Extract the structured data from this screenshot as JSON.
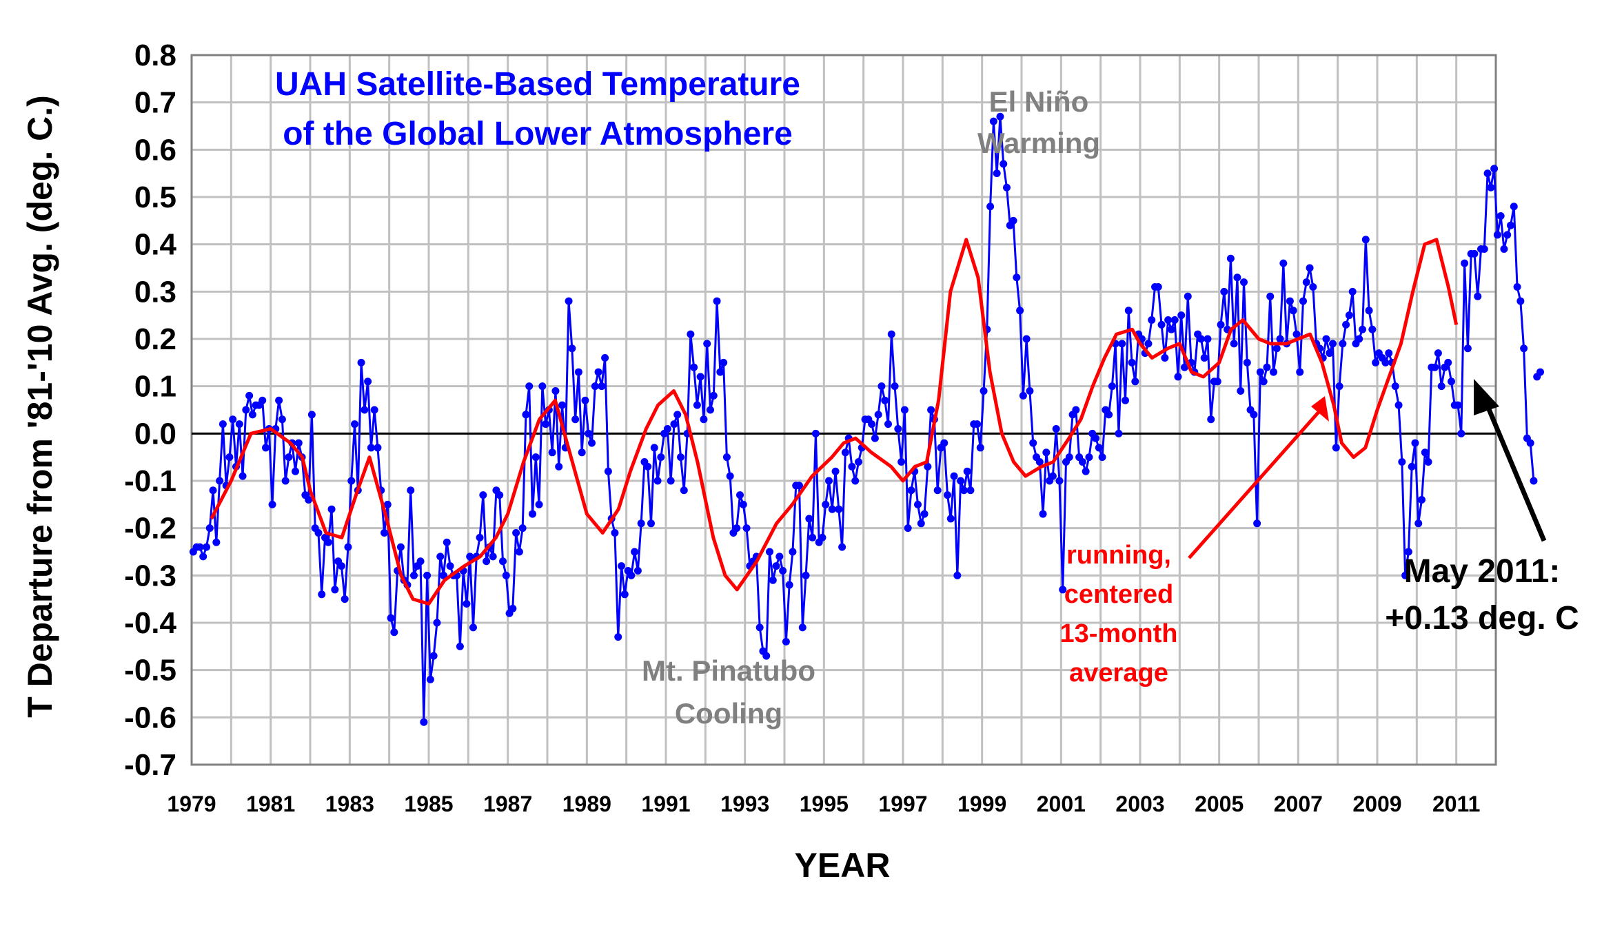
{
  "chart_data": {
    "type": "line",
    "title": "UAH Satellite-Based Temperature of the Global Lower Atmosphere",
    "title_lines": [
      "UAH Satellite-Based Temperature",
      "of the Global Lower Atmosphere"
    ],
    "xlabel": "YEAR",
    "ylabel": "T Departure from '81-'10 Avg. (deg. C.)",
    "xlim": [
      1979,
      2012
    ],
    "ylim": [
      -0.7,
      0.8
    ],
    "y_ticks": [
      "0.8",
      "0.7",
      "0.6",
      "0.5",
      "0.4",
      "0.3",
      "0.2",
      "0.1",
      "0.0",
      "-0.1",
      "-0.2",
      "-0.3",
      "-0.4",
      "-0.5",
      "-0.6",
      "-0.7"
    ],
    "x_ticks": [
      "1979",
      "1981",
      "1983",
      "1985",
      "1987",
      "1989",
      "1991",
      "1993",
      "1995",
      "1997",
      "1999",
      "2001",
      "2003",
      "2005",
      "2007",
      "2009",
      "2011"
    ],
    "grid": true,
    "colors": {
      "monthly": "#0000ff",
      "running": "#ff0000",
      "grid": "#c0c0c0",
      "zero": "#000000",
      "arrow": "#000000",
      "red_arrow": "#ff0000"
    },
    "annotations": {
      "el_nino": [
        "El Niño",
        "Warming"
      ],
      "pinatubo": [
        "Mt. Pinatubo",
        "Cooling"
      ],
      "running": [
        "running,",
        "centered",
        "13-month",
        "average"
      ],
      "latest": [
        "May 2011:",
        "+0.13 deg. C"
      ]
    },
    "series": [
      {
        "name": "monthly",
        "start": "1979-01",
        "values": [
          -0.25,
          -0.24,
          -0.24,
          -0.26,
          -0.24,
          -0.2,
          -0.12,
          -0.23,
          -0.1,
          0.02,
          -0.11,
          -0.05,
          0.03,
          -0.07,
          0.02,
          -0.09,
          0.05,
          0.08,
          0.04,
          0.06,
          0.06,
          0.07,
          -0.03,
          0.01,
          -0.15,
          0.01,
          0.07,
          0.03,
          -0.1,
          -0.05,
          -0.02,
          -0.08,
          -0.02,
          -0.05,
          -0.13,
          -0.14,
          0.04,
          -0.2,
          -0.21,
          -0.34,
          -0.22,
          -0.23,
          -0.16,
          -0.33,
          -0.27,
          -0.28,
          -0.35,
          -0.24,
          -0.1,
          0.02,
          -0.12,
          0.15,
          0.05,
          0.11,
          -0.03,
          0.05,
          -0.03,
          -0.12,
          -0.21,
          -0.15,
          -0.39,
          -0.42,
          -0.29,
          -0.24,
          -0.31,
          -0.32,
          -0.12,
          -0.3,
          -0.28,
          -0.27,
          -0.61,
          -0.3,
          -0.52,
          -0.47,
          -0.4,
          -0.26,
          -0.3,
          -0.23,
          -0.28,
          -0.3,
          -0.3,
          -0.45,
          -0.29,
          -0.36,
          -0.26,
          -0.41,
          -0.26,
          -0.22,
          -0.13,
          -0.27,
          -0.24,
          -0.26,
          -0.12,
          -0.13,
          -0.27,
          -0.3,
          -0.38,
          -0.37,
          -0.21,
          -0.25,
          -0.2,
          0.04,
          0.1,
          -0.17,
          -0.05,
          -0.15,
          0.1,
          0.02,
          0.05,
          -0.04,
          0.09,
          -0.07,
          0.06,
          -0.03,
          0.28,
          0.18,
          0.03,
          0.13,
          -0.04,
          0.07,
          0.0,
          -0.02,
          0.1,
          0.13,
          0.1,
          0.16,
          -0.08,
          -0.18,
          -0.21,
          -0.43,
          -0.28,
          -0.34,
          -0.29,
          -0.3,
          -0.25,
          -0.29,
          -0.19,
          -0.06,
          -0.07,
          -0.19,
          -0.03,
          -0.1,
          -0.05,
          0.0,
          0.01,
          -0.1,
          0.02,
          0.04,
          -0.05,
          -0.12,
          0.0,
          0.21,
          0.14,
          0.06,
          0.12,
          0.03,
          0.19,
          0.05,
          0.08,
          0.28,
          0.13,
          0.15,
          -0.05,
          -0.09,
          -0.21,
          -0.2,
          -0.13,
          -0.15,
          -0.2,
          -0.28,
          -0.27,
          -0.26,
          -0.41,
          -0.46,
          -0.47,
          -0.25,
          -0.31,
          -0.28,
          -0.26,
          -0.29,
          -0.44,
          -0.32,
          -0.25,
          -0.11,
          -0.11,
          -0.41,
          -0.3,
          -0.18,
          -0.22,
          0.0,
          -0.23,
          -0.22,
          -0.15,
          -0.1,
          -0.16,
          -0.08,
          -0.16,
          -0.24,
          -0.04,
          -0.01,
          -0.07,
          -0.1,
          -0.06,
          -0.03,
          0.03,
          0.03,
          0.02,
          -0.01,
          0.04,
          0.1,
          0.07,
          0.02,
          0.21,
          0.1,
          0.01,
          -0.06,
          0.05,
          -0.2,
          -0.12,
          -0.08,
          -0.15,
          -0.19,
          -0.17,
          -0.07,
          0.05,
          0.03,
          -0.12,
          -0.03,
          -0.02,
          -0.13,
          -0.18,
          -0.09,
          -0.3,
          -0.1,
          -0.12,
          -0.08,
          -0.12,
          0.02,
          0.02,
          -0.03,
          0.09,
          0.22,
          0.48,
          0.66,
          0.55,
          0.67,
          0.57,
          0.52,
          0.44,
          0.45,
          0.33,
          0.26,
          0.08,
          0.2,
          0.09,
          -0.02,
          -0.05,
          -0.06,
          -0.17,
          -0.04,
          -0.1,
          -0.09,
          0.01,
          -0.1,
          -0.33,
          -0.06,
          -0.05,
          0.04,
          0.05,
          -0.05,
          -0.06,
          -0.08,
          -0.05,
          0.0,
          -0.01,
          -0.03,
          -0.05,
          0.05,
          0.04,
          0.1,
          0.19,
          0.0,
          0.19,
          0.07,
          0.26,
          0.15,
          0.11,
          0.21,
          0.2,
          0.17,
          0.19,
          0.24,
          0.31,
          0.31,
          0.23,
          0.16,
          0.24,
          0.22,
          0.24,
          0.12,
          0.25,
          0.14,
          0.29,
          0.15,
          0.13,
          0.21,
          0.2,
          0.16,
          0.2,
          0.03,
          0.11,
          0.11,
          0.23,
          0.3,
          0.22,
          0.37,
          0.19,
          0.33,
          0.09,
          0.32,
          0.15,
          0.05,
          0.04,
          -0.19,
          0.13,
          0.11,
          0.14,
          0.29,
          0.13,
          0.18,
          0.2,
          0.36,
          0.19,
          0.28,
          0.26,
          0.21,
          0.13,
          0.28,
          0.32,
          0.35,
          0.31,
          0.19,
          0.18,
          0.16,
          0.2,
          0.17,
          0.19,
          -0.03,
          0.1,
          0.19,
          0.23,
          0.25,
          0.3,
          0.19,
          0.2,
          0.22,
          0.41,
          0.26,
          0.22,
          0.15,
          0.17,
          0.16,
          0.15,
          0.17,
          0.15,
          0.1,
          0.06,
          -0.06,
          -0.3,
          -0.25,
          -0.07,
          -0.02,
          -0.19,
          -0.14,
          -0.04,
          -0.06,
          0.14,
          0.14,
          0.17,
          0.1,
          0.14,
          0.15,
          0.11,
          0.06,
          0.06,
          0.0,
          0.36,
          0.18,
          0.38,
          0.38,
          0.29,
          0.39,
          0.39,
          0.55,
          0.52,
          0.56,
          0.42,
          0.46,
          0.39,
          0.42,
          0.44,
          0.48,
          0.31,
          0.28,
          0.18,
          -0.01,
          -0.02,
          -0.1,
          0.12,
          0.13
        ]
      },
      {
        "name": "running",
        "values": [
          [
            1979.5,
            -0.18
          ],
          [
            1980.0,
            -0.1
          ],
          [
            1980.5,
            0.0
          ],
          [
            1981.0,
            0.01
          ],
          [
            1981.5,
            -0.02
          ],
          [
            1981.8,
            -0.05
          ],
          [
            1982.0,
            -0.12
          ],
          [
            1982.4,
            -0.21
          ],
          [
            1982.8,
            -0.22
          ],
          [
            1983.2,
            -0.12
          ],
          [
            1983.5,
            -0.05
          ],
          [
            1983.9,
            -0.17
          ],
          [
            1984.3,
            -0.3
          ],
          [
            1984.6,
            -0.35
          ],
          [
            1985.0,
            -0.36
          ],
          [
            1985.4,
            -0.31
          ],
          [
            1985.9,
            -0.28
          ],
          [
            1986.3,
            -0.26
          ],
          [
            1986.7,
            -0.22
          ],
          [
            1987.0,
            -0.17
          ],
          [
            1987.4,
            -0.06
          ],
          [
            1987.8,
            0.03
          ],
          [
            1988.2,
            0.07
          ],
          [
            1988.6,
            -0.05
          ],
          [
            1989.0,
            -0.17
          ],
          [
            1989.4,
            -0.21
          ],
          [
            1989.8,
            -0.16
          ],
          [
            1990.1,
            -0.08
          ],
          [
            1990.5,
            0.01
          ],
          [
            1990.8,
            0.06
          ],
          [
            1991.2,
            0.09
          ],
          [
            1991.5,
            0.04
          ],
          [
            1991.8,
            -0.06
          ],
          [
            1992.2,
            -0.22
          ],
          [
            1992.5,
            -0.3
          ],
          [
            1992.8,
            -0.33
          ],
          [
            1993.3,
            -0.27
          ],
          [
            1993.8,
            -0.19
          ],
          [
            1994.2,
            -0.15
          ],
          [
            1994.7,
            -0.09
          ],
          [
            1995.2,
            -0.05
          ],
          [
            1995.5,
            -0.02
          ],
          [
            1995.8,
            -0.01
          ],
          [
            1996.2,
            -0.04
          ],
          [
            1996.7,
            -0.07
          ],
          [
            1997.0,
            -0.1
          ],
          [
            1997.3,
            -0.07
          ],
          [
            1997.6,
            -0.06
          ],
          [
            1997.9,
            0.07
          ],
          [
            1998.2,
            0.3
          ],
          [
            1998.6,
            0.41
          ],
          [
            1998.9,
            0.33
          ],
          [
            1999.2,
            0.13
          ],
          [
            1999.5,
            0.0
          ],
          [
            1999.8,
            -0.06
          ],
          [
            2000.1,
            -0.09
          ],
          [
            2000.5,
            -0.07
          ],
          [
            2000.8,
            -0.06
          ],
          [
            2001.2,
            -0.01
          ],
          [
            2001.5,
            0.03
          ],
          [
            2001.8,
            0.1
          ],
          [
            2002.1,
            0.16
          ],
          [
            2002.4,
            0.21
          ],
          [
            2002.8,
            0.22
          ],
          [
            2003.0,
            0.19
          ],
          [
            2003.3,
            0.16
          ],
          [
            2003.7,
            0.18
          ],
          [
            2004.0,
            0.19
          ],
          [
            2004.3,
            0.13
          ],
          [
            2004.6,
            0.12
          ],
          [
            2005.0,
            0.15
          ],
          [
            2005.3,
            0.22
          ],
          [
            2005.6,
            0.24
          ],
          [
            2006.0,
            0.2
          ],
          [
            2006.3,
            0.19
          ],
          [
            2006.7,
            0.19
          ],
          [
            2007.0,
            0.2
          ],
          [
            2007.3,
            0.21
          ],
          [
            2007.6,
            0.15
          ],
          [
            2007.9,
            0.06
          ],
          [
            2008.1,
            -0.02
          ],
          [
            2008.4,
            -0.05
          ],
          [
            2008.7,
            -0.03
          ],
          [
            2009.0,
            0.05
          ],
          [
            2009.3,
            0.12
          ],
          [
            2009.6,
            0.19
          ],
          [
            2009.9,
            0.3
          ],
          [
            2010.2,
            0.4
          ],
          [
            2010.5,
            0.41
          ],
          [
            2010.8,
            0.31
          ],
          [
            2011.0,
            0.23
          ]
        ]
      }
    ]
  }
}
